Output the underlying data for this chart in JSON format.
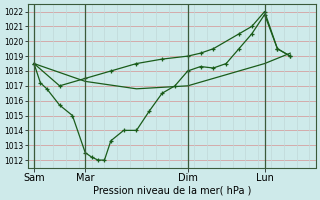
{
  "xlabel": "Pression niveau de la mer( hPa )",
  "bg_color": "#ceeaea",
  "grid_color_h": "#d4a0a0",
  "grid_color_v": "#c0d8d8",
  "line_color": "#1a5c1a",
  "ylim": [
    1011.5,
    1022.5
  ],
  "yticks": [
    1012,
    1013,
    1014,
    1015,
    1016,
    1017,
    1018,
    1019,
    1020,
    1021,
    1022
  ],
  "xtick_labels": [
    "Sam",
    "Mar",
    "Dim",
    "Lun"
  ],
  "xtick_positions": [
    0,
    24,
    72,
    108
  ],
  "vline_positions": [
    0,
    24,
    72,
    108
  ],
  "xlim": [
    -3,
    132
  ],
  "series1_x": [
    0,
    3,
    6,
    12,
    18,
    24,
    27,
    30,
    33,
    36,
    42,
    48,
    54,
    60,
    66,
    72,
    78,
    84,
    90,
    96,
    102,
    108,
    114,
    120
  ],
  "series1_y": [
    1018.5,
    1017.2,
    1016.8,
    1015.7,
    1015.0,
    1012.5,
    1012.2,
    1012.0,
    1012.0,
    1013.3,
    1014.0,
    1014.0,
    1015.3,
    1016.5,
    1017.0,
    1018.0,
    1018.3,
    1018.2,
    1018.5,
    1019.5,
    1020.5,
    1021.8,
    1019.5,
    1019.0
  ],
  "series2_x": [
    0,
    12,
    24,
    36,
    48,
    60,
    72,
    78,
    84,
    96,
    102,
    108,
    114,
    120
  ],
  "series2_y": [
    1018.5,
    1017.0,
    1017.5,
    1018.0,
    1018.5,
    1018.8,
    1019.0,
    1019.2,
    1019.5,
    1020.5,
    1021.0,
    1022.0,
    1019.5,
    1019.0
  ],
  "series3_x": [
    0,
    24,
    48,
    72,
    96,
    108,
    120
  ],
  "series3_y": [
    1018.5,
    1017.3,
    1016.8,
    1017.0,
    1018.0,
    1018.5,
    1019.2
  ]
}
